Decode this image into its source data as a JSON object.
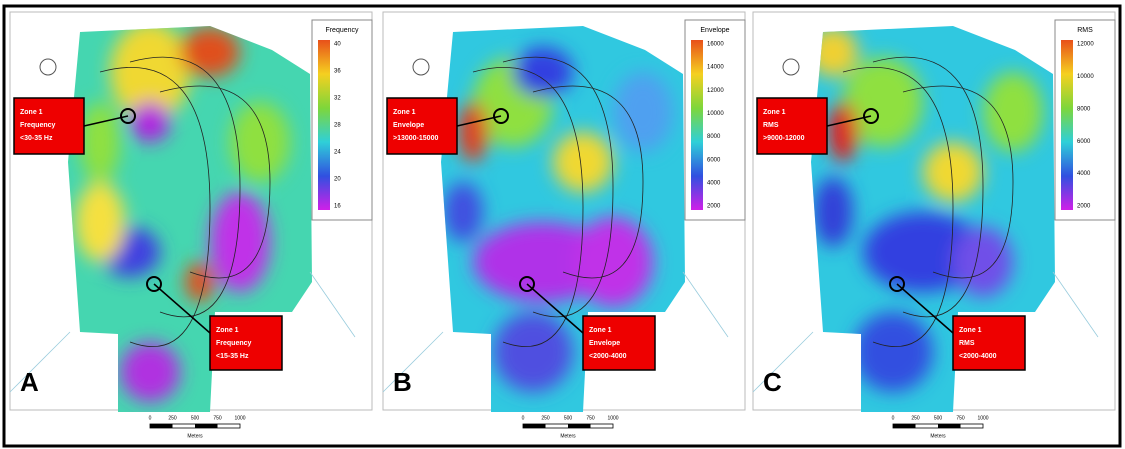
{
  "panels": [
    {
      "label": "A",
      "legend_title": "Frequency",
      "legend_ticks": [
        40,
        36,
        32,
        28,
        24,
        20,
        16
      ],
      "callouts": [
        [
          "Zone 1",
          "Frequency",
          "<30-35 Hz"
        ],
        [
          "Zone 1",
          "Frequency",
          "<15-35 Hz"
        ]
      ],
      "scale_ticks": [
        0,
        250,
        500,
        750,
        1000
      ],
      "scale_unit": "Meters"
    },
    {
      "label": "B",
      "legend_title": "Envelope",
      "legend_ticks": [
        16000,
        14000,
        12000,
        10000,
        8000,
        6000,
        4000,
        2000
      ],
      "callouts": [
        [
          "Zone 1",
          "Envelope",
          ">13000-15000"
        ],
        [
          "Zone 1",
          "Envelope",
          "<2000-4000"
        ]
      ],
      "scale_ticks": [
        0,
        250,
        500,
        750,
        1000
      ],
      "scale_unit": "Meters"
    },
    {
      "label": "C",
      "legend_title": "RMS",
      "legend_ticks": [
        12000,
        10000,
        8000,
        6000,
        4000,
        2000
      ],
      "callouts": [
        [
          "Zone 1",
          "RMS",
          ">9000-12000"
        ],
        [
          "Zone 1",
          "RMS",
          "<2000-4000"
        ]
      ],
      "scale_ticks": [
        0,
        250,
        500,
        750,
        1000
      ],
      "scale_unit": "Meters"
    }
  ]
}
